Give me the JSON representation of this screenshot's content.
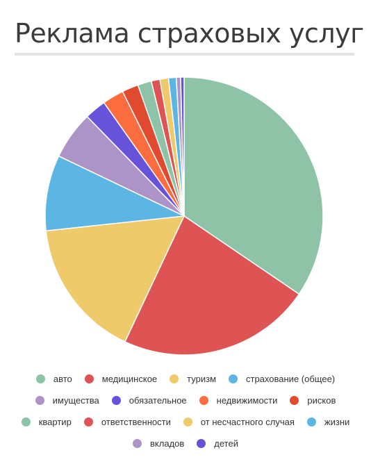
{
  "chart_data": {
    "type": "pie",
    "title": "Реклама страховых услуг",
    "legend_position": "bottom",
    "series": [
      {
        "name": "авто",
        "value": 34.5,
        "color": "#8fc3a7"
      },
      {
        "name": "медицинское",
        "value": 22.5,
        "color": "#de5454"
      },
      {
        "name": "туризм",
        "value": 16.3,
        "color": "#efca6a"
      },
      {
        "name": "страхование (общее)",
        "value": 8.8,
        "color": "#5db5e4"
      },
      {
        "name": "имущества",
        "value": 5.6,
        "color": "#ac93c8"
      },
      {
        "name": "обязательное",
        "value": 2.5,
        "color": "#6753da"
      },
      {
        "name": "недвижимости",
        "value": 2.5,
        "color": "#fb6d3e"
      },
      {
        "name": "рисков",
        "value": 1.9,
        "color": "#e04b30"
      },
      {
        "name": "квартир",
        "value": 1.6,
        "color": "#8fc3a7"
      },
      {
        "name": "ответственности",
        "value": 1.0,
        "color": "#de5454"
      },
      {
        "name": "от несчастного случая",
        "value": 1.0,
        "color": "#efca6a"
      },
      {
        "name": "жизни",
        "value": 0.9,
        "color": "#5db5e4"
      },
      {
        "name": "вкладов",
        "value": 0.5,
        "color": "#ac93c8"
      },
      {
        "name": "детей",
        "value": 0.4,
        "color": "#6753da"
      }
    ]
  }
}
